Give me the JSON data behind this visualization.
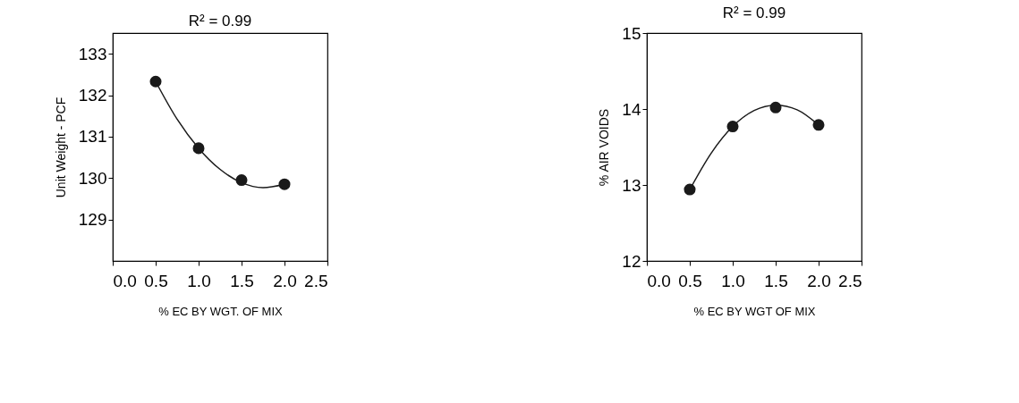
{
  "chart_data": [
    {
      "type": "scatter",
      "title": "R² = 0.99",
      "xlabel": "% EC BY WGT. OF MIX",
      "ylabel": "Unit Weight - PCF",
      "grid": false,
      "xlim": [
        0,
        2.5
      ],
      "xticks": [
        {
          "value": 0,
          "label": "0.0"
        },
        0.5,
        {
          "value": 1,
          "label": "1.0"
        },
        1.5,
        {
          "value": 2,
          "label": "2.0"
        },
        2.5
      ],
      "ylim": [
        128,
        133.5
      ],
      "yticks": [
        129,
        130,
        131,
        132,
        133
      ],
      "series": [
        {
          "marker": "circle",
          "color": "#1a1a1a",
          "x": [
            0.5,
            1.0,
            1.5,
            2.0
          ],
          "values": [
            132.33,
            130.72,
            129.95,
            129.85
          ]
        },
        {
          "type": "line",
          "marker": "none",
          "color": "#1a1a1a",
          "x": [
            0.5,
            0.75,
            1.0,
            1.25,
            1.5,
            1.75,
            2.0
          ],
          "values": [
            132.33,
            131.42,
            130.72,
            130.21,
            129.89,
            129.77,
            129.85
          ]
        }
      ]
    },
    {
      "type": "scatter",
      "title": "R² = 0.99",
      "xlabel": "% EC BY WGT OF MIX",
      "ylabel": "% AIR VOIDS",
      "grid": false,
      "xlim": [
        0,
        2.5
      ],
      "xticks": [
        {
          "value": 0,
          "label": "0.0"
        },
        0.5,
        {
          "value": 1,
          "label": "1.0"
        },
        1.5,
        {
          "value": 2,
          "label": "2.0"
        },
        2.5
      ],
      "ylim": [
        12,
        15
      ],
      "yticks": [
        12,
        13,
        14,
        15
      ],
      "series": [
        {
          "marker": "circle",
          "color": "#1a1a1a",
          "x": [
            0.5,
            1.0,
            1.5,
            2.0
          ],
          "values": [
            12.94,
            13.77,
            14.02,
            13.79
          ]
        },
        {
          "type": "line",
          "marker": "none",
          "color": "#1a1a1a",
          "x": [
            0.5,
            0.75,
            1.0,
            1.25,
            1.5,
            1.75,
            2.0
          ],
          "values": [
            12.94,
            13.42,
            13.77,
            13.98,
            14.05,
            13.99,
            13.79
          ]
        }
      ]
    }
  ]
}
